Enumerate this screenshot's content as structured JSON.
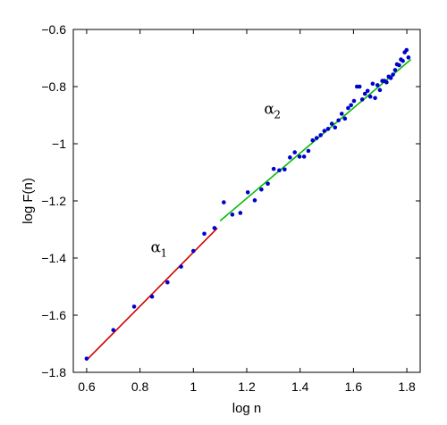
{
  "chart_data": {
    "type": "scatter",
    "xlabel": "log n",
    "ylabel": "log F(n)",
    "xlim": [
      0.55,
      1.85
    ],
    "ylim": [
      -1.8,
      -0.6
    ],
    "xticks": [
      0.6,
      0.8,
      1,
      1.2,
      1.4,
      1.6,
      1.8
    ],
    "xtick_labels": [
      "0.6",
      "0.8",
      "1",
      "1.2",
      "1.4",
      "1.6",
      "1.8"
    ],
    "yticks": [
      -1.8,
      -1.6,
      -1.4,
      -1.2,
      -1,
      -0.8,
      -0.6
    ],
    "ytick_labels": [
      "−1.8",
      "−1.6",
      "−1.4",
      "−1.2",
      "−1",
      "−0.8",
      "−0.6"
    ],
    "grid": false,
    "point_color": "#0000cc",
    "points": [
      {
        "x": 0.6,
        "y": -1.752
      },
      {
        "x": 0.7,
        "y": -1.652
      },
      {
        "x": 0.778,
        "y": -1.57
      },
      {
        "x": 0.845,
        "y": -1.535
      },
      {
        "x": 0.903,
        "y": -1.485
      },
      {
        "x": 0.954,
        "y": -1.43
      },
      {
        "x": 1.0,
        "y": -1.375
      },
      {
        "x": 1.041,
        "y": -1.315
      },
      {
        "x": 1.079,
        "y": -1.295
      },
      {
        "x": 1.114,
        "y": -1.205
      },
      {
        "x": 1.146,
        "y": -1.248
      },
      {
        "x": 1.176,
        "y": -1.242
      },
      {
        "x": 1.204,
        "y": -1.17
      },
      {
        "x": 1.23,
        "y": -1.198
      },
      {
        "x": 1.255,
        "y": -1.16
      },
      {
        "x": 1.279,
        "y": -1.14
      },
      {
        "x": 1.301,
        "y": -1.088
      },
      {
        "x": 1.322,
        "y": -1.093
      },
      {
        "x": 1.342,
        "y": -1.09
      },
      {
        "x": 1.362,
        "y": -1.048
      },
      {
        "x": 1.38,
        "y": -1.03
      },
      {
        "x": 1.398,
        "y": -1.045
      },
      {
        "x": 1.415,
        "y": -1.045
      },
      {
        "x": 1.431,
        "y": -1.025
      },
      {
        "x": 1.447,
        "y": -0.988
      },
      {
        "x": 1.462,
        "y": -0.98
      },
      {
        "x": 1.477,
        "y": -0.97
      },
      {
        "x": 1.491,
        "y": -0.955
      },
      {
        "x": 1.505,
        "y": -0.948
      },
      {
        "x": 1.519,
        "y": -0.93
      },
      {
        "x": 1.531,
        "y": -0.943
      },
      {
        "x": 1.544,
        "y": -0.918
      },
      {
        "x": 1.556,
        "y": -0.895
      },
      {
        "x": 1.568,
        "y": -0.912
      },
      {
        "x": 1.58,
        "y": -0.875
      },
      {
        "x": 1.591,
        "y": -0.865
      },
      {
        "x": 1.602,
        "y": -0.85
      },
      {
        "x": 1.613,
        "y": -0.8
      },
      {
        "x": 1.623,
        "y": -0.8
      },
      {
        "x": 1.633,
        "y": -0.845
      },
      {
        "x": 1.643,
        "y": -0.825
      },
      {
        "x": 1.653,
        "y": -0.815
      },
      {
        "x": 1.663,
        "y": -0.835
      },
      {
        "x": 1.672,
        "y": -0.79
      },
      {
        "x": 1.681,
        "y": -0.84
      },
      {
        "x": 1.69,
        "y": -0.795
      },
      {
        "x": 1.699,
        "y": -0.812
      },
      {
        "x": 1.708,
        "y": -0.78
      },
      {
        "x": 1.716,
        "y": -0.78
      },
      {
        "x": 1.724,
        "y": -0.785
      },
      {
        "x": 1.732,
        "y": -0.765
      },
      {
        "x": 1.74,
        "y": -0.77
      },
      {
        "x": 1.748,
        "y": -0.758
      },
      {
        "x": 1.756,
        "y": -0.742
      },
      {
        "x": 1.763,
        "y": -0.722
      },
      {
        "x": 1.771,
        "y": -0.725
      },
      {
        "x": 1.778,
        "y": -0.705
      },
      {
        "x": 1.785,
        "y": -0.71
      },
      {
        "x": 1.792,
        "y": -0.68
      },
      {
        "x": 1.799,
        "y": -0.672
      },
      {
        "x": 1.806,
        "y": -0.698
      }
    ],
    "fit_lines": [
      {
        "id": "alpha1",
        "color": "#cc0000",
        "x": [
          0.6,
          1.09
        ],
        "y": [
          -1.757,
          -1.295
        ]
      },
      {
        "id": "alpha2",
        "color": "#00bb00",
        "x": [
          1.1,
          1.815
        ],
        "y": [
          -1.27,
          -0.705
        ]
      }
    ],
    "annotations": [
      {
        "id": "alpha1",
        "symbol": "α",
        "subscript": "1",
        "x": 0.84,
        "y": -1.38
      },
      {
        "id": "alpha2",
        "symbol": "α",
        "subscript": "2",
        "x": 1.265,
        "y": -0.895
      }
    ]
  }
}
